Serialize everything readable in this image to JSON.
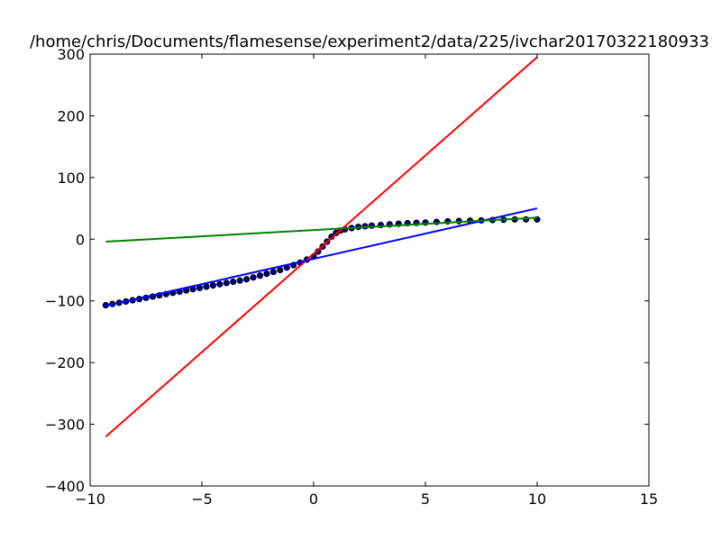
{
  "chart_data": {
    "type": "line",
    "title": "/home/chris/Documents/flamesense/experiment2/data/225/ivchar20170322180933",
    "xlabel": "",
    "ylabel": "",
    "xlim": [
      -10,
      15
    ],
    "ylim": [
      -400,
      300
    ],
    "x_ticks": [
      -10,
      -5,
      0,
      5,
      10,
      15
    ],
    "y_ticks": [
      -400,
      -300,
      -200,
      -100,
      0,
      100,
      200,
      300
    ],
    "x_tick_labels": [
      "−10",
      "−5",
      "0",
      "5",
      "10",
      "15"
    ],
    "y_tick_labels": [
      "−400",
      "−300",
      "−200",
      "−100",
      "0",
      "100",
      "200",
      "300"
    ],
    "grid": false,
    "series": [
      {
        "kind": "line",
        "color": "#ff0000",
        "x": [
          -9.3,
          10.0
        ],
        "y": [
          -320,
          295
        ]
      },
      {
        "kind": "line",
        "color": "#0000ff",
        "x": [
          -9.3,
          10.0
        ],
        "y": [
          -108,
          50
        ]
      },
      {
        "kind": "line",
        "color": "#008000",
        "x": [
          -9.3,
          10.0
        ],
        "y": [
          -4,
          35
        ]
      },
      {
        "kind": "markers",
        "color": "#000000",
        "marker": "circle",
        "x": [
          -9.3,
          -9.0,
          -8.7,
          -8.4,
          -8.1,
          -7.8,
          -7.5,
          -7.2,
          -6.9,
          -6.6,
          -6.3,
          -6.0,
          -5.7,
          -5.4,
          -5.1,
          -4.8,
          -4.5,
          -4.2,
          -3.9,
          -3.6,
          -3.3,
          -3.0,
          -2.7,
          -2.4,
          -2.1,
          -1.8,
          -1.5,
          -1.2,
          -0.9,
          -0.6,
          -0.3,
          0.0,
          0.2,
          0.4,
          0.6,
          0.8,
          1.0,
          1.2,
          1.4,
          1.7,
          2.0,
          2.3,
          2.6,
          3.0,
          3.4,
          3.8,
          4.2,
          4.6,
          5.0,
          5.5,
          6.0,
          6.5,
          7.0,
          7.5,
          8.0,
          8.5,
          9.0,
          9.5,
          10.0
        ],
        "y": [
          -107,
          -105,
          -103,
          -101,
          -99,
          -97,
          -95,
          -93,
          -91,
          -89,
          -87,
          -85,
          -83,
          -81,
          -79,
          -77,
          -75,
          -73,
          -71,
          -69,
          -67,
          -65,
          -62,
          -59,
          -56,
          -53,
          -50,
          -46,
          -42,
          -38,
          -33,
          -28,
          -20,
          -12,
          -4,
          4,
          10,
          14,
          16,
          18,
          20,
          21,
          22,
          23,
          24,
          25,
          26,
          26.5,
          27,
          28,
          29,
          29.5,
          30,
          30.5,
          31,
          31.5,
          32,
          32,
          32
        ]
      }
    ]
  }
}
